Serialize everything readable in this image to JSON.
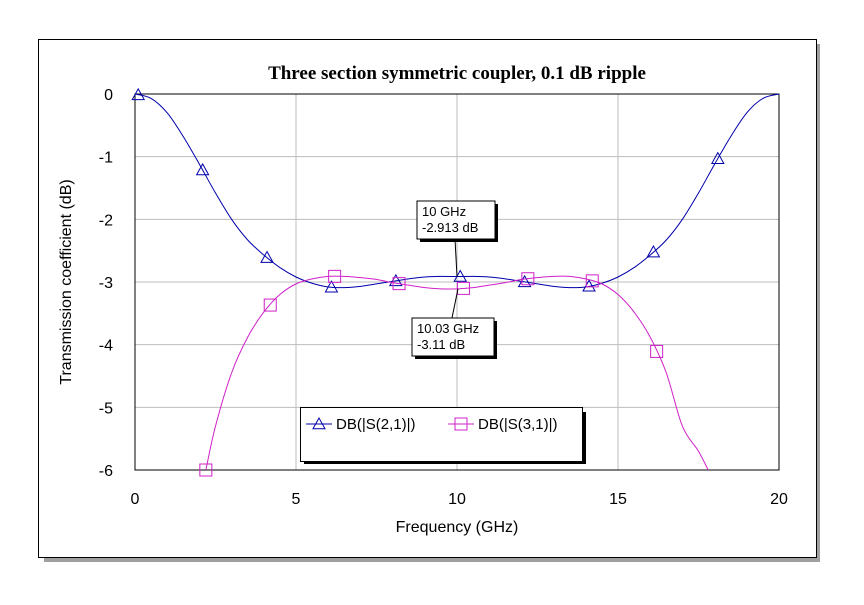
{
  "chart_data": {
    "type": "line",
    "title": "Three section symmetric coupler, 0.1 dB ripple",
    "xlabel": "Frequency (GHz)",
    "ylabel": "Transmission coefficient (dB)",
    "xlim": [
      0,
      20
    ],
    "ylim": [
      -6,
      0
    ],
    "x_ticks": [
      0,
      5,
      10,
      15,
      20
    ],
    "y_ticks": [
      0,
      -1,
      -2,
      -3,
      -4,
      -5,
      -6
    ],
    "grid": true,
    "legend_position": "bottom-center",
    "series": [
      {
        "name": "DB(|S(2,1)|)",
        "color": "#0000aa",
        "marker": "triangle",
        "x": [
          0,
          0.5,
          1,
          1.5,
          2,
          2.5,
          3,
          3.5,
          4,
          4.5,
          5,
          5.5,
          6,
          6.5,
          7,
          7.5,
          8,
          8.5,
          9,
          9.5,
          10,
          10.5,
          11,
          11.5,
          12,
          12.5,
          13,
          13.5,
          14,
          14.5,
          15,
          15.5,
          16,
          16.5,
          17,
          17.5,
          18,
          18.5,
          19,
          19.5,
          20
        ],
        "y": [
          0,
          -0.07,
          -0.3,
          -0.68,
          -1.12,
          -1.58,
          -2.0,
          -2.33,
          -2.57,
          -2.77,
          -2.92,
          -3.02,
          -3.08,
          -3.09,
          -3.07,
          -3.03,
          -2.99,
          -2.95,
          -2.92,
          -2.91,
          -2.913,
          -2.91,
          -2.92,
          -2.95,
          -2.99,
          -3.03,
          -3.07,
          -3.09,
          -3.08,
          -3.02,
          -2.92,
          -2.77,
          -2.57,
          -2.33,
          -2.0,
          -1.58,
          -1.12,
          -0.68,
          -0.3,
          -0.07,
          0
        ],
        "marker_x": [
          0.1,
          2.1,
          4.1,
          6.1,
          8.1,
          10.1,
          12.1,
          14.1,
          16.1,
          18.1
        ]
      },
      {
        "name": "DB(|S(3,1)|)",
        "color": "#d020c8",
        "marker": "square",
        "x": [
          2.2,
          2.5,
          3,
          3.5,
          4,
          4.5,
          5,
          5.5,
          6,
          6.5,
          7,
          7.5,
          8,
          8.5,
          9,
          9.5,
          10,
          10.5,
          11,
          11.5,
          12,
          12.5,
          13,
          13.5,
          14,
          14.5,
          15,
          15.5,
          16,
          16.5,
          17,
          17.5,
          17.8
        ],
        "y": [
          -6.0,
          -5.3,
          -4.45,
          -3.88,
          -3.48,
          -3.2,
          -3.03,
          -2.95,
          -2.91,
          -2.91,
          -2.93,
          -2.96,
          -3.01,
          -3.05,
          -3.09,
          -3.11,
          -3.11,
          -3.09,
          -3.05,
          -3.01,
          -2.96,
          -2.93,
          -2.91,
          -2.91,
          -2.95,
          -3.03,
          -3.2,
          -3.48,
          -3.88,
          -4.45,
          -5.3,
          -5.7,
          -6.0
        ],
        "marker_x": [
          2.2,
          4.2,
          6.2,
          8.2,
          10.2,
          12.2,
          14.2,
          16.2
        ]
      }
    ],
    "annotations": [
      {
        "freq_label": "10 GHz",
        "value_label": "-2.913 dB",
        "x": 10,
        "y": -2.913,
        "placement": "above"
      },
      {
        "freq_label": "10.03 GHz",
        "value_label": "-3.11 dB",
        "x": 10.03,
        "y": -3.11,
        "placement": "below"
      }
    ]
  }
}
